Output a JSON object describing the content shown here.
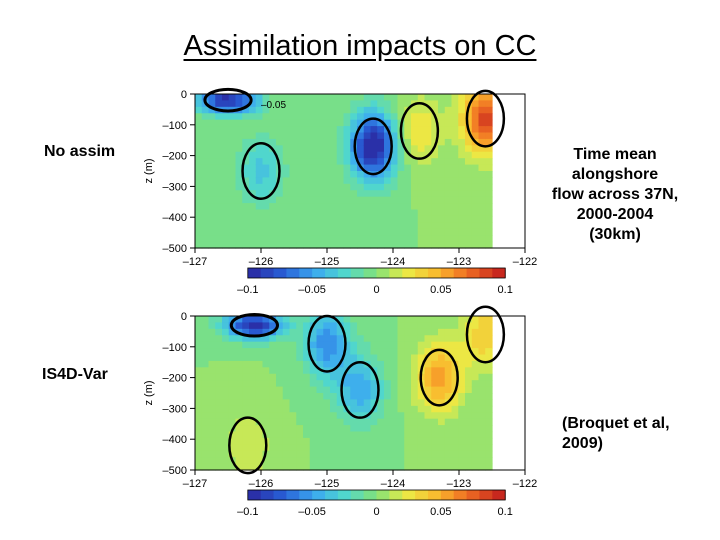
{
  "title": "Assimilation impacts on CC",
  "panels": [
    {
      "label": "No assim"
    },
    {
      "label": "IS4D-Var"
    }
  ],
  "notes": {
    "right_top": [
      "Time mean",
      "alongshore",
      "flow across 37N,",
      "2000-2004",
      "(30km)"
    ],
    "right_bottom": [
      "(Broquet et al,",
      "2009)"
    ]
  },
  "chart_data": [
    {
      "type": "heatmap",
      "panel": "No assim",
      "title": "",
      "xlabel": "",
      "ylabel": "z (m)",
      "x_ticks": [
        -127,
        -126,
        -125,
        -124,
        -123,
        -122
      ],
      "x_tick_labels": [
        "–127",
        "–126",
        "–125",
        "–124",
        "–123",
        "–122"
      ],
      "y_ticks": [
        0,
        -100,
        -200,
        -300,
        -400,
        -500
      ],
      "y_tick_labels": [
        "0",
        "–100",
        "–200",
        "–300",
        "–400",
        "–500"
      ],
      "xlim": [
        -127,
        -122
      ],
      "ylim": [
        -500,
        0
      ],
      "coast_longitude": -122.5,
      "colorbar": {
        "range": [
          -0.1,
          0.1
        ],
        "tick_values": [
          -0.1,
          -0.05,
          0,
          0.05,
          0.1
        ],
        "tick_labels": [
          "–0.1",
          "–0.05",
          "0",
          "0.05",
          "0.1"
        ]
      },
      "annotations": [
        "–0.05"
      ],
      "features": [
        {
          "kind": "jet",
          "lon": -126.5,
          "depth": 20,
          "value": -0.1
        },
        {
          "kind": "core",
          "lon": -124.3,
          "depth": 170,
          "value": -0.11
        },
        {
          "kind": "core",
          "lon": -126.0,
          "depth": 250,
          "value": -0.035
        },
        {
          "kind": "core",
          "lon": -123.6,
          "depth": 120,
          "value": 0.03
        },
        {
          "kind": "core",
          "lon": -122.6,
          "depth": 80,
          "value": 0.09
        }
      ]
    },
    {
      "type": "heatmap",
      "panel": "IS4D-Var",
      "title": "",
      "xlabel": "",
      "ylabel": "z (m)",
      "x_ticks": [
        -127,
        -126,
        -125,
        -124,
        -123,
        -122
      ],
      "x_tick_labels": [
        "–127",
        "–126",
        "–125",
        "–124",
        "–123",
        "–122"
      ],
      "y_ticks": [
        0,
        -100,
        -200,
        -300,
        -400,
        -500
      ],
      "y_tick_labels": [
        "0",
        "–100",
        "–200",
        "–300",
        "–400",
        "–500"
      ],
      "xlim": [
        -127,
        -122
      ],
      "ylim": [
        -500,
        0
      ],
      "coast_longitude": -122.5,
      "colorbar": {
        "range": [
          -0.1,
          0.1
        ],
        "tick_values": [
          -0.1,
          -0.05,
          0,
          0.05,
          0.1
        ],
        "tick_labels": [
          "–0.1",
          "–0.05",
          "0",
          "0.05",
          "0.1"
        ]
      },
      "annotations": [],
      "features": [
        {
          "kind": "jet",
          "lon": -126.1,
          "depth": 30,
          "value": -0.1
        },
        {
          "kind": "core",
          "lon": -125.0,
          "depth": 90,
          "value": -0.06
        },
        {
          "kind": "core",
          "lon": -124.5,
          "depth": 240,
          "value": -0.05
        },
        {
          "kind": "core",
          "lon": -123.3,
          "depth": 200,
          "value": 0.06
        },
        {
          "kind": "core",
          "lon": -122.6,
          "depth": 60,
          "value": 0.04
        },
        {
          "kind": "core",
          "lon": -126.2,
          "depth": 420,
          "value": 0.02
        }
      ]
    }
  ]
}
